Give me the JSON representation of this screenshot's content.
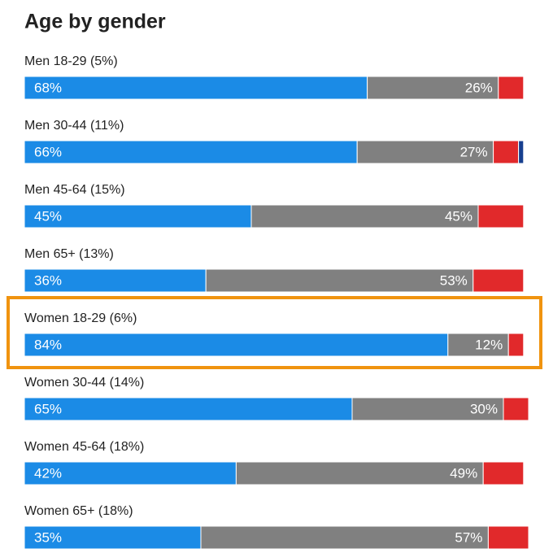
{
  "chart_data": {
    "type": "stacked-bar-horizontal",
    "title": "Age by gender",
    "categories": [
      "Men 18-29 (5%)",
      "Men 30-44 (11%)",
      "Men 45-64 (15%)",
      "Men 65+ (13%)",
      "Women 18-29 (6%)",
      "Women 30-44 (14%)",
      "Women 45-64 (18%)",
      "Women 65+ (18%)"
    ],
    "xlim": [
      0,
      100
    ],
    "series": [
      {
        "color": "#1b8be6",
        "values": [
          68,
          66,
          45,
          36,
          84,
          65,
          42,
          35
        ],
        "value_labels": [
          "68%",
          "66%",
          "45%",
          "36%",
          "84%",
          "65%",
          "42%",
          "35%"
        ]
      },
      {
        "color": "#808080",
        "values": [
          26,
          27,
          45,
          53,
          12,
          30,
          49,
          57
        ],
        "value_labels": [
          "26%",
          "27%",
          "45%",
          "53%",
          "12%",
          "30%",
          "49%",
          "57%"
        ]
      },
      {
        "color": "#e1292b",
        "values": [
          5,
          5,
          9,
          10,
          3,
          5,
          8,
          8
        ]
      },
      {
        "color": "#173f8f",
        "values": [
          null,
          1,
          null,
          null,
          null,
          null,
          null,
          null
        ]
      }
    ]
  }
}
